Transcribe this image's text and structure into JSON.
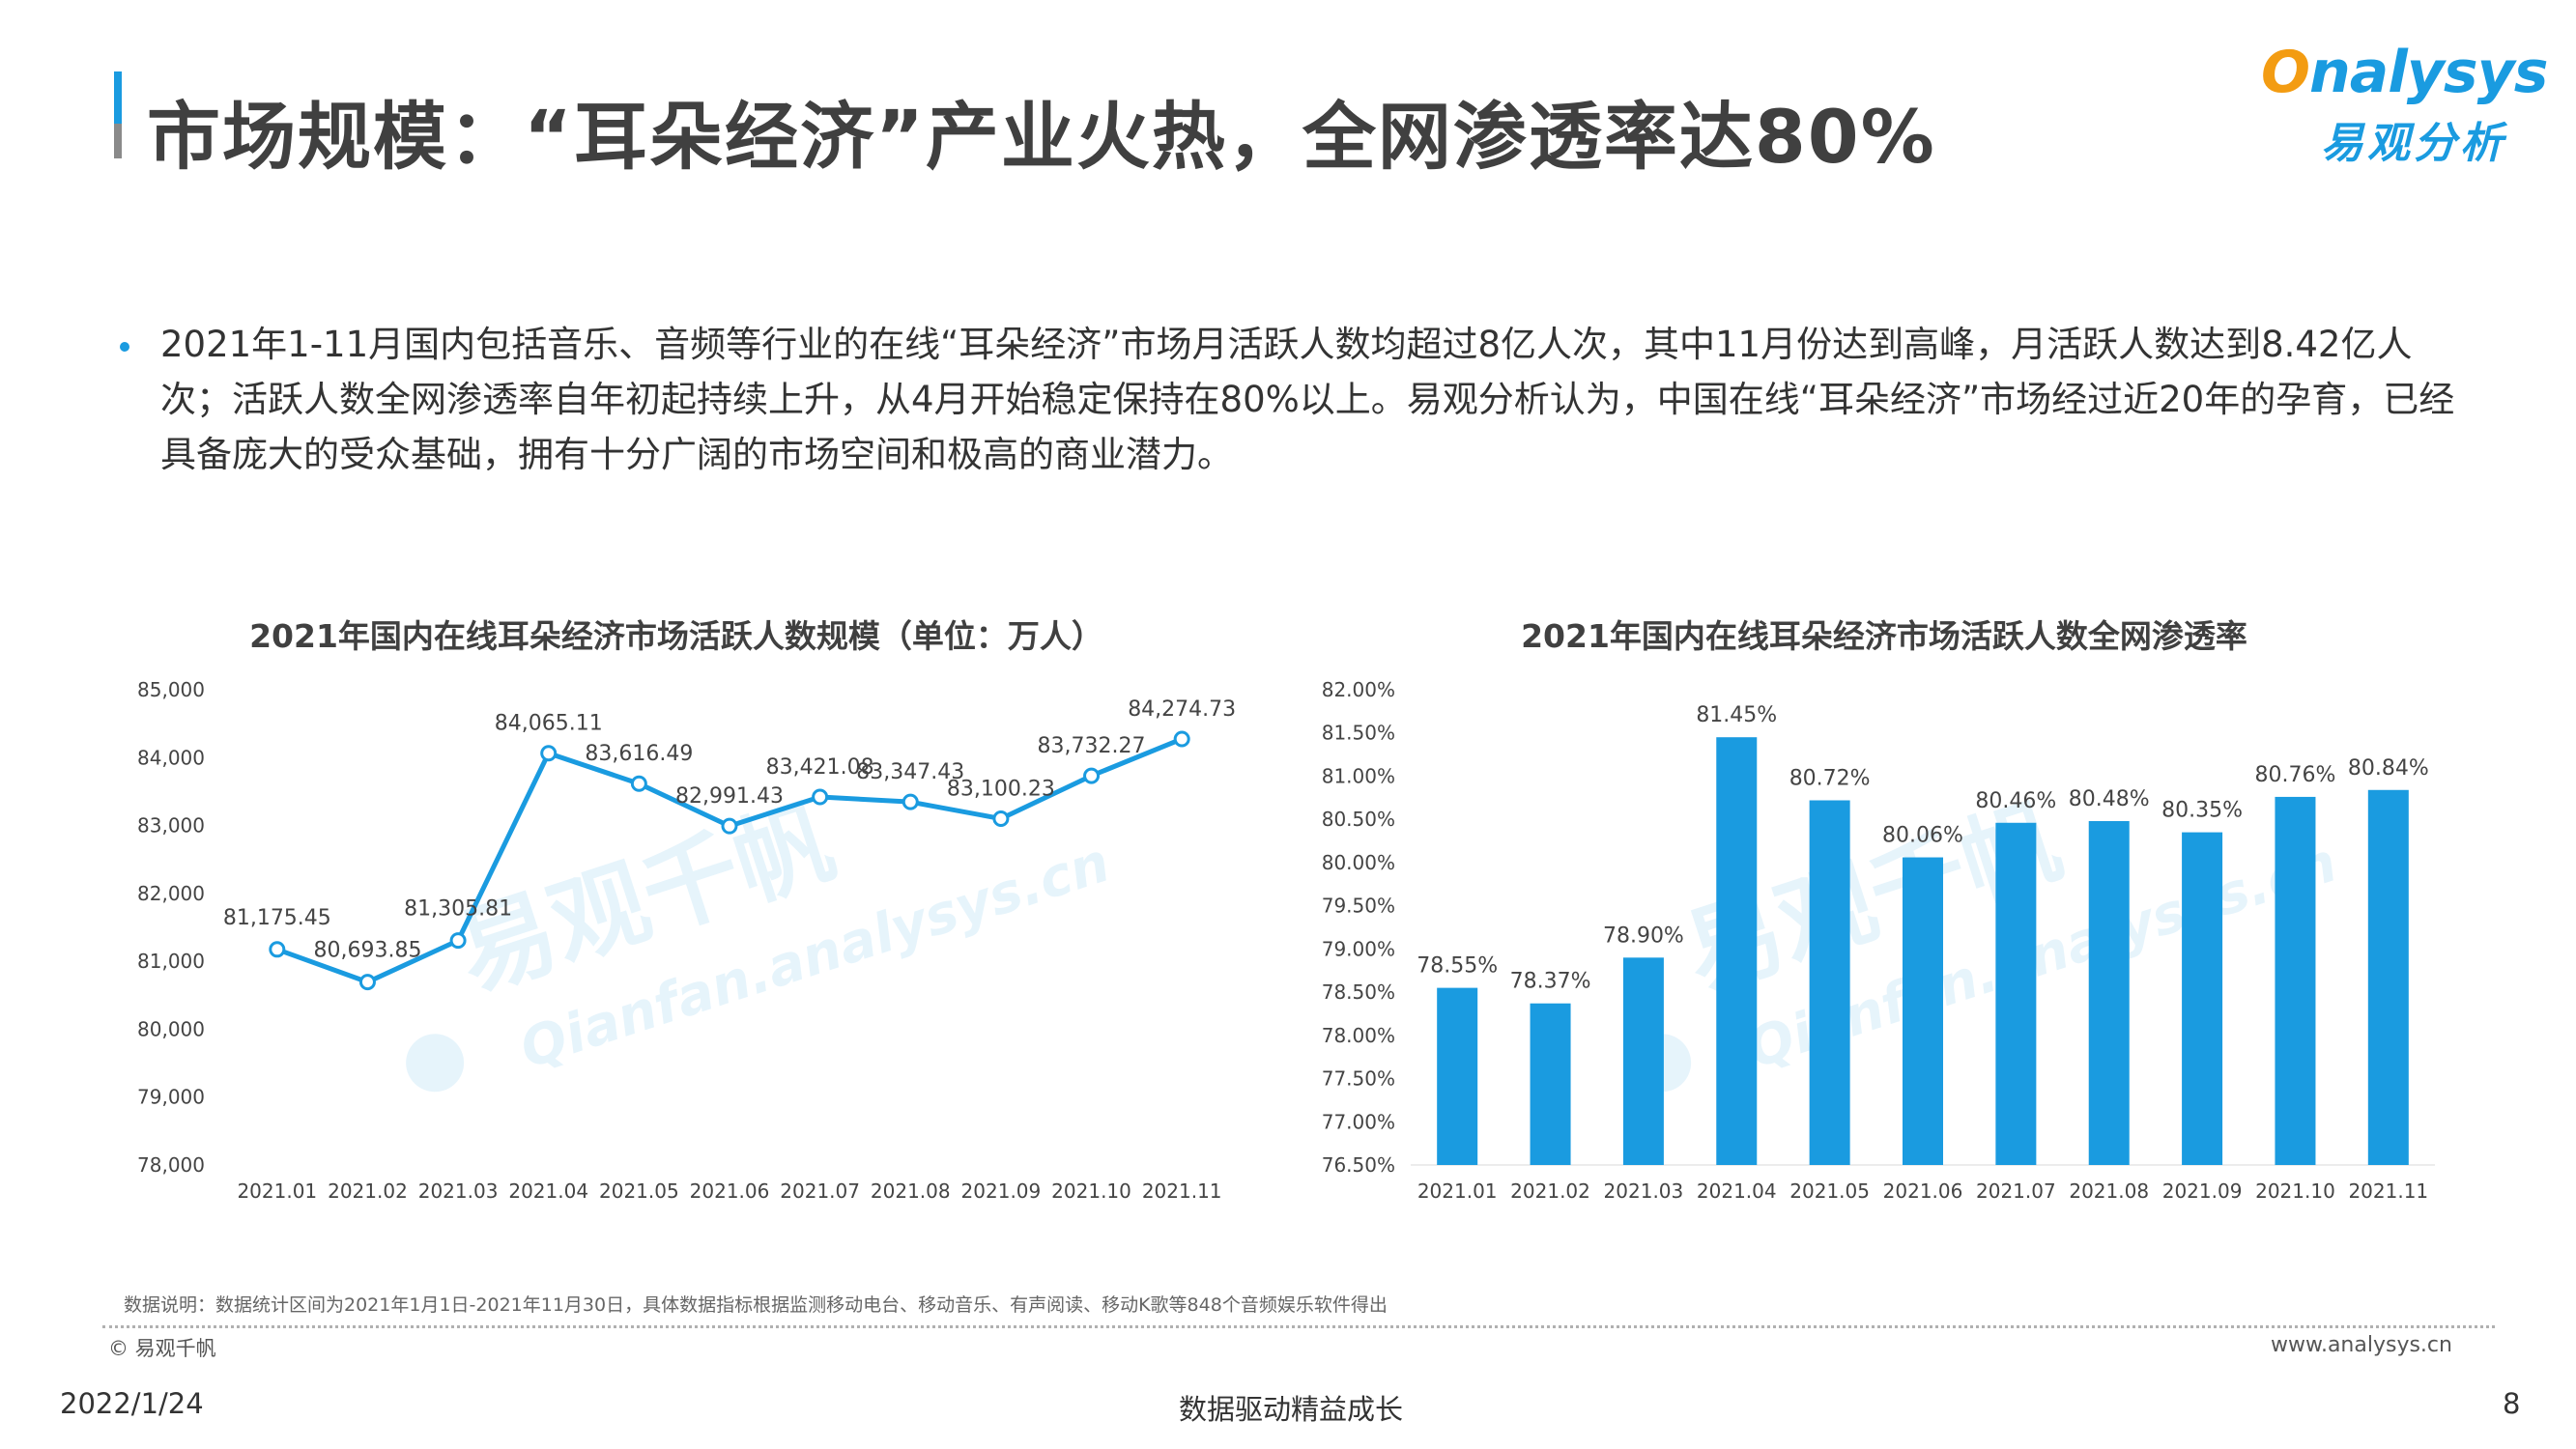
{
  "header": {
    "title": "市场规模：“耳朵经济”产业火热，全网渗透率达80%",
    "logo_en": "nalysys",
    "logo_cn": "易观分析"
  },
  "body": {
    "bullet": "2021年1-11月国内包括音乐、音频等行业的在线“耳朵经济”市场月活跃人数均超过8亿人次，其中11月份达到高峰，月活跃人数达到8.42亿人次；活跃人数全网渗透率自年初起持续上升，从4月开始稳定保持在80%以上。易观分析认为，中国在线“耳朵经济”市场经过近20年的孕育，已经具备庞大的受众基础，拥有十分广阔的市场空间和极高的商业潜力。"
  },
  "watermark": {
    "cn": "易观千帆",
    "en": "Qianfan.analysys.cn"
  },
  "chart_data": [
    {
      "type": "line",
      "title": "2021年国内在线耳朵经济市场活跃人数规模（单位：万人）",
      "categories": [
        "2021.01",
        "2021.02",
        "2021.03",
        "2021.04",
        "2021.05",
        "2021.06",
        "2021.07",
        "2021.08",
        "2021.09",
        "2021.10",
        "2021.11"
      ],
      "values": [
        81175.45,
        80693.85,
        81305.81,
        84065.11,
        83616.49,
        82991.43,
        83421.08,
        83347.43,
        83100.23,
        83732.27,
        84274.73
      ],
      "value_labels": [
        "81,175.45",
        "80,693.85",
        "81,305.81",
        "84,065.11",
        "83,616.49",
        "82,991.43",
        "83,421.08",
        "83,347.43",
        "83,100.23",
        "83,732.27",
        "84,274.73"
      ],
      "ylim": [
        78000,
        85000
      ],
      "yticks": [
        78000,
        79000,
        80000,
        81000,
        82000,
        83000,
        84000,
        85000
      ],
      "ytick_labels": [
        "78,000",
        "79,000",
        "80,000",
        "81,000",
        "82,000",
        "83,000",
        "84,000",
        "85,000"
      ],
      "color": "#1a9be0",
      "grid": false,
      "xlabel": "",
      "ylabel": ""
    },
    {
      "type": "bar",
      "title": "2021年国内在线耳朵经济市场活跃人数全网渗透率",
      "categories": [
        "2021.01",
        "2021.02",
        "2021.03",
        "2021.04",
        "2021.05",
        "2021.06",
        "2021.07",
        "2021.08",
        "2021.09",
        "2021.10",
        "2021.11"
      ],
      "values": [
        78.55,
        78.37,
        78.9,
        81.45,
        80.72,
        80.06,
        80.46,
        80.48,
        80.35,
        80.76,
        80.84
      ],
      "value_labels": [
        "78.55%",
        "78.37%",
        "78.90%",
        "81.45%",
        "80.72%",
        "80.06%",
        "80.46%",
        "80.48%",
        "80.35%",
        "80.76%",
        "80.84%"
      ],
      "ylim": [
        76.5,
        82.0
      ],
      "yticks": [
        76.5,
        77.0,
        77.5,
        78.0,
        78.5,
        79.0,
        79.5,
        80.0,
        80.5,
        81.0,
        81.5,
        82.0
      ],
      "ytick_labels": [
        "76.50%",
        "77.00%",
        "77.50%",
        "78.00%",
        "78.50%",
        "79.00%",
        "79.50%",
        "80.00%",
        "80.50%",
        "81.00%",
        "81.50%",
        "82.00%"
      ],
      "color": "#1a9be0",
      "grid": false,
      "xlabel": "",
      "ylabel": ""
    }
  ],
  "footer": {
    "note": "数据说明：数据统计区间为2021年1月1日-2021年11月30日，具体数据指标根据监测移动电台、移动音乐、有声阅读、移动K歌等848个音频娱乐软件得出",
    "copyright": "© 易观千帆",
    "website": "www.analysys.cn",
    "date": "2022/1/24",
    "slogan": "数据驱动精益成长",
    "page": "8"
  }
}
